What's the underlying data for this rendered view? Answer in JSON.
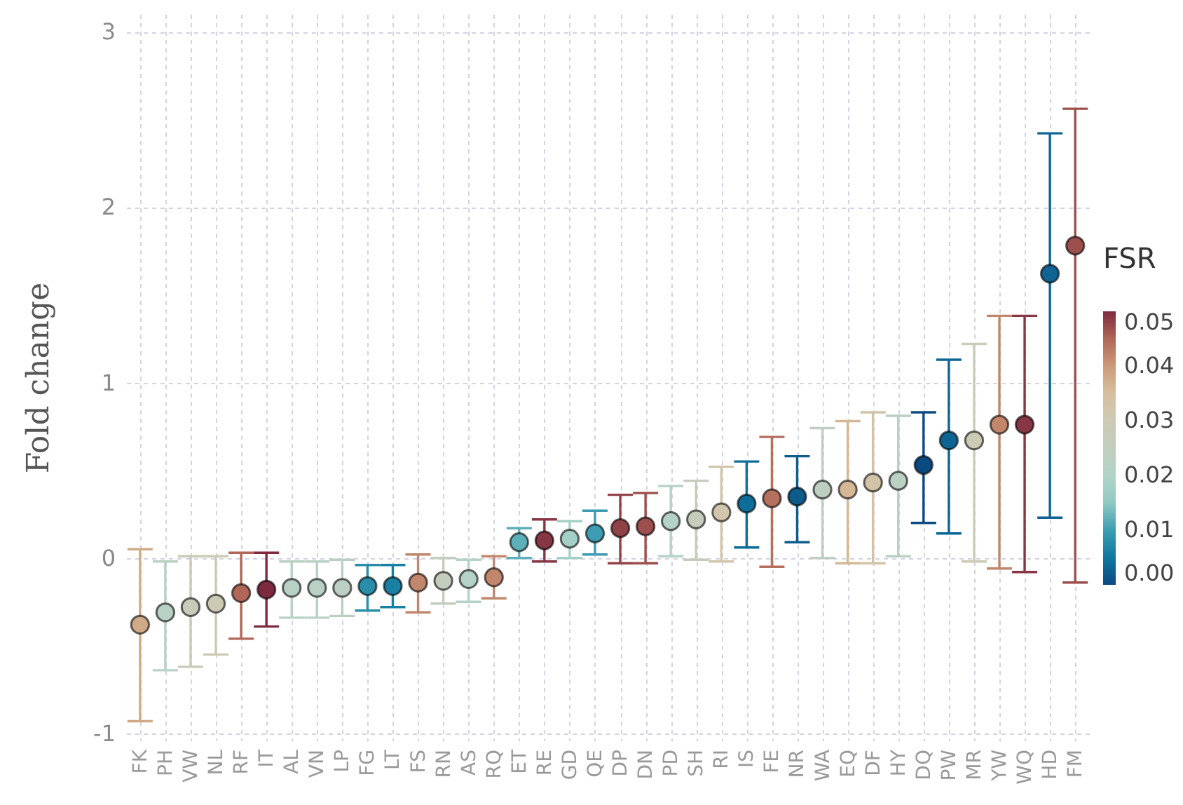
{
  "chart_data": {
    "type": "scatter",
    "ylabel": "Fold change",
    "clabel": "FSR",
    "categories": [
      "FK",
      "PH",
      "VW",
      "NL",
      "RF",
      "IT",
      "AL",
      "VN",
      "LP",
      "FG",
      "LT",
      "FS",
      "RN",
      "AS",
      "RQ",
      "ET",
      "RE",
      "GD",
      "QE",
      "DP",
      "DN",
      "PD",
      "SH",
      "RI",
      "IS",
      "FE",
      "NR",
      "WA",
      "EQ",
      "DF",
      "HY",
      "DQ",
      "PW",
      "MR",
      "YW",
      "WQ",
      "HD",
      "FM"
    ],
    "values": [
      -0.38,
      -0.31,
      -0.28,
      -0.26,
      -0.2,
      -0.18,
      -0.17,
      -0.17,
      -0.17,
      -0.16,
      -0.16,
      -0.14,
      -0.13,
      -0.12,
      -0.11,
      0.09,
      0.1,
      0.11,
      0.14,
      0.17,
      0.18,
      0.21,
      0.22,
      0.26,
      0.31,
      0.34,
      0.35,
      0.39,
      0.39,
      0.43,
      0.44,
      0.53,
      0.67,
      0.67,
      0.76,
      0.76,
      1.62,
      1.78
    ],
    "errors": [
      [
        -0.93,
        0.05
      ],
      [
        -0.64,
        -0.02
      ],
      [
        -0.62,
        0.01
      ],
      [
        -0.55,
        0.01
      ],
      [
        -0.46,
        0.03
      ],
      [
        -0.39,
        0.03
      ],
      [
        -0.34,
        -0.02
      ],
      [
        -0.34,
        -0.02
      ],
      [
        -0.33,
        -0.01
      ],
      [
        -0.3,
        -0.04
      ],
      [
        -0.28,
        -0.04
      ],
      [
        -0.31,
        0.02
      ],
      [
        -0.26,
        0.0
      ],
      [
        -0.25,
        -0.01
      ],
      [
        -0.23,
        0.01
      ],
      [
        0.0,
        0.17
      ],
      [
        -0.02,
        0.22
      ],
      [
        0.0,
        0.21
      ],
      [
        0.02,
        0.27
      ],
      [
        -0.03,
        0.36
      ],
      [
        -0.03,
        0.37
      ],
      [
        0.01,
        0.41
      ],
      [
        -0.01,
        0.44
      ],
      [
        -0.02,
        0.52
      ],
      [
        0.06,
        0.55
      ],
      [
        -0.05,
        0.69
      ],
      [
        0.09,
        0.58
      ],
      [
        0.0,
        0.74
      ],
      [
        -0.03,
        0.78
      ],
      [
        -0.03,
        0.83
      ],
      [
        0.01,
        0.81
      ],
      [
        0.2,
        0.83
      ],
      [
        0.14,
        1.13
      ],
      [
        -0.02,
        1.22
      ],
      [
        -0.06,
        1.38
      ],
      [
        -0.08,
        1.38
      ],
      [
        0.23,
        2.42
      ],
      [
        -0.14,
        2.56
      ]
    ],
    "cvalues": [
      0.038,
      0.022,
      0.028,
      0.03,
      0.045,
      0.05,
      0.022,
      0.022,
      0.023,
      0.008,
      0.006,
      0.042,
      0.026,
      0.021,
      0.042,
      0.012,
      0.049,
      0.018,
      0.01,
      0.048,
      0.047,
      0.021,
      0.027,
      0.032,
      0.004,
      0.044,
      0.002,
      0.024,
      0.036,
      0.033,
      0.023,
      0.0,
      0.003,
      0.029,
      0.042,
      0.049,
      0.003,
      0.047
    ],
    "clim": [
      0,
      0.05
    ],
    "cticks": [
      {
        "value": 0,
        "label": "0.00"
      },
      0.01,
      0.02,
      0.03,
      0.04,
      0.05
    ],
    "ylim": [
      -1.04,
      3.1
    ],
    "yticks": [
      -1,
      0,
      1,
      2,
      3
    ],
    "grid": true,
    "marker": "circle"
  }
}
